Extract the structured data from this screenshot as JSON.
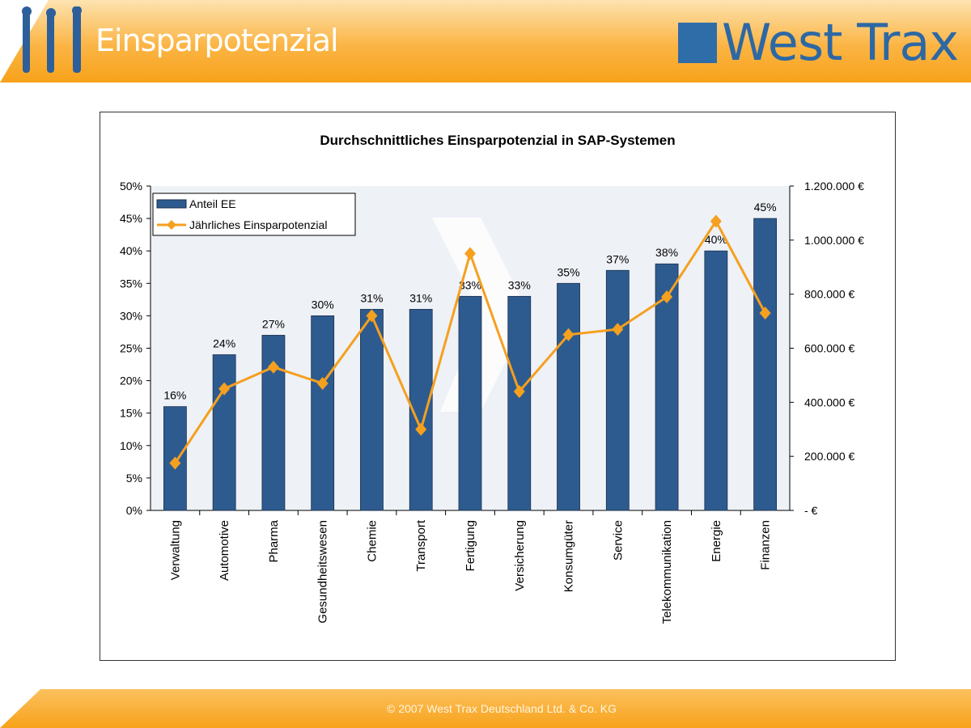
{
  "header": {
    "title": "Einsparpotenzial",
    "logo_text": "West Trax"
  },
  "footer": {
    "copyright": "© 2007 West Trax Deutschland Ltd. & Co. KG"
  },
  "colors": {
    "bar": "#2e5b8f",
    "line": "#f5a01f",
    "header": "#f7a21a",
    "logo": "#2d68a4"
  },
  "chart_data": {
    "type": "bar+line",
    "title": "Durchschnittliches Einsparpotenzial in SAP-Systemen",
    "categories": [
      "Verwaltung",
      "Automotive",
      "Pharma",
      "Gesundheitswesen",
      "Chemie",
      "Transport",
      "Fertigung",
      "Versicherung",
      "Konsumgüter",
      "Service",
      "Telekommunikation",
      "Energie",
      "Finanzen"
    ],
    "series": [
      {
        "name": "Anteil EE",
        "type": "bar",
        "axis": "left",
        "values": [
          16,
          24,
          27,
          30,
          31,
          31,
          33,
          33,
          35,
          37,
          38,
          40,
          45
        ],
        "labels": [
          "16%",
          "24%",
          "27%",
          "30%",
          "31%",
          "31%",
          "33%",
          "33%",
          "35%",
          "37%",
          "38%",
          "40%",
          "45%"
        ]
      },
      {
        "name": "Jährliches Einsparpotenzial",
        "type": "line",
        "axis": "right",
        "values": [
          175000,
          450000,
          530000,
          470000,
          720000,
          300000,
          950000,
          440000,
          650000,
          670000,
          790000,
          1070000,
          730000
        ]
      }
    ],
    "y_left": {
      "range": [
        0,
        50
      ],
      "ticks": [
        "0%",
        "5%",
        "10%",
        "15%",
        "20%",
        "25%",
        "30%",
        "35%",
        "40%",
        "45%",
        "50%"
      ]
    },
    "y_right": {
      "range": [
        0,
        1200000
      ],
      "ticks": [
        "-   €",
        "200.000 €",
        "400.000 €",
        "600.000 €",
        "800.000 €",
        "1.000.000 €",
        "1.200.000 €"
      ]
    },
    "legend": "top-left",
    "grid": false
  }
}
